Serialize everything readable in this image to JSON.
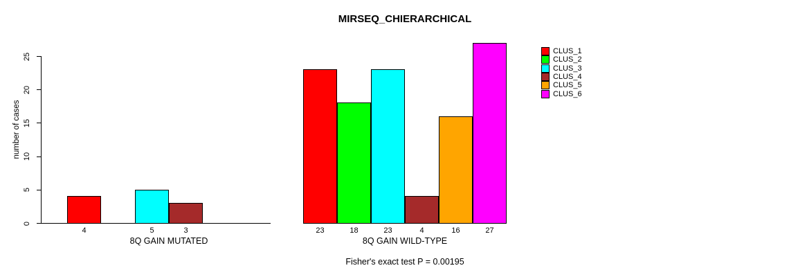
{
  "chart_data": {
    "type": "bar",
    "title": "MIRSEQ_CHIERARCHICAL",
    "ylabel": "number of cases",
    "xlabel": "",
    "ylim": [
      0,
      27
    ],
    "yticks": [
      0,
      5,
      10,
      15,
      20,
      25
    ],
    "grid": false,
    "legend_position": "top-right",
    "bar_value_labels": true,
    "categories": [
      "8Q GAIN MUTATED",
      "8Q GAIN WILD-TYPE"
    ],
    "series": [
      {
        "name": "CLUS_1",
        "color": "#FF0000",
        "values": [
          4,
          23
        ]
      },
      {
        "name": "CLUS_2",
        "color": "#00FF00",
        "values": [
          0,
          18
        ]
      },
      {
        "name": "CLUS_3",
        "color": "#00FFFF",
        "values": [
          5,
          23
        ]
      },
      {
        "name": "CLUS_4",
        "color": "#A52A2A",
        "values": [
          3,
          4
        ]
      },
      {
        "name": "CLUS_5",
        "color": "#FFA500",
        "values": [
          0,
          16
        ]
      },
      {
        "name": "CLUS_6",
        "color": "#FF00FF",
        "values": [
          0,
          27
        ]
      }
    ],
    "annotation": "Fisher's exact test P = 0.00195",
    "axis_color": "#000000",
    "background_color": "#FFFFFF"
  }
}
